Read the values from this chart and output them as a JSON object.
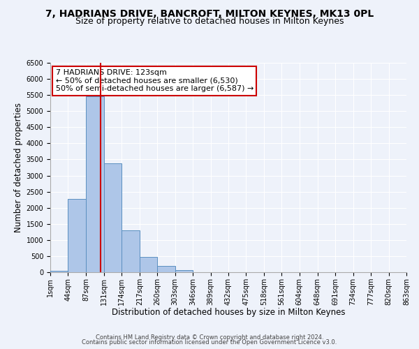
{
  "title": "7, HADRIANS DRIVE, BANCROFT, MILTON KEYNES, MK13 0PL",
  "subtitle": "Size of property relative to detached houses in Milton Keynes",
  "xlabel": "Distribution of detached houses by size in Milton Keynes",
  "ylabel": "Number of detached properties",
  "bar_values": [
    50,
    2280,
    5450,
    3380,
    1310,
    480,
    185,
    75,
    0,
    0,
    0,
    0,
    0,
    0,
    0,
    0,
    0,
    0,
    0,
    0
  ],
  "bin_edges": [
    1,
    44,
    87,
    131,
    174,
    217,
    260,
    303,
    346,
    389,
    432,
    475,
    518,
    561,
    604,
    648,
    691,
    734,
    777,
    820,
    863
  ],
  "tick_labels": [
    "1sqm",
    "44sqm",
    "87sqm",
    "131sqm",
    "174sqm",
    "217sqm",
    "260sqm",
    "303sqm",
    "346sqm",
    "389sqm",
    "432sqm",
    "475sqm",
    "518sqm",
    "561sqm",
    "604sqm",
    "648sqm",
    "691sqm",
    "734sqm",
    "777sqm",
    "820sqm",
    "863sqm"
  ],
  "bar_color": "#aec6e8",
  "bar_edgecolor": "#5a8fc0",
  "vline_x": 123,
  "vline_color": "#cc0000",
  "ylim": [
    0,
    6500
  ],
  "yticks": [
    0,
    500,
    1000,
    1500,
    2000,
    2500,
    3000,
    3500,
    4000,
    4500,
    5000,
    5500,
    6000,
    6500
  ],
  "annotation_title": "7 HADRIANS DRIVE: 123sqm",
  "annotation_line1": "← 50% of detached houses are smaller (6,530)",
  "annotation_line2": "50% of semi-detached houses are larger (6,587) →",
  "annotation_box_color": "#ffffff",
  "annotation_box_edgecolor": "#cc0000",
  "footer1": "Contains HM Land Registry data © Crown copyright and database right 2024.",
  "footer2": "Contains public sector information licensed under the Open Government Licence v3.0.",
  "bg_color": "#eef2fa",
  "grid_color": "#ffffff",
  "title_fontsize": 10,
  "subtitle_fontsize": 9,
  "axis_label_fontsize": 8.5,
  "tick_fontsize": 7,
  "annotation_fontsize": 8,
  "footer_fontsize": 6
}
